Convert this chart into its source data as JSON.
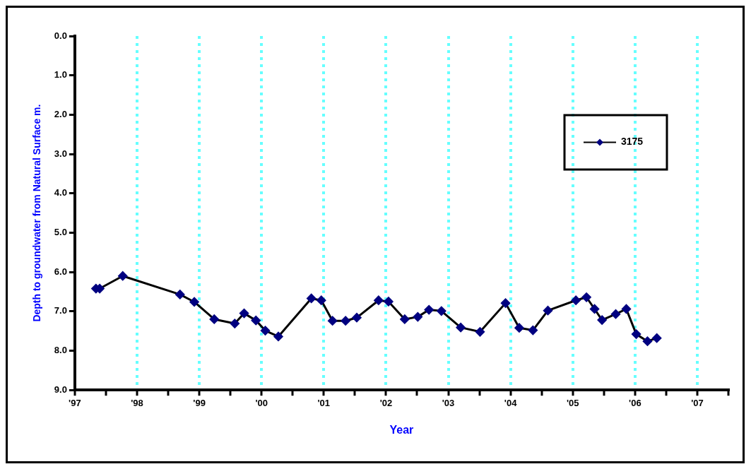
{
  "chart_data": {
    "type": "line",
    "xlabel": "Year",
    "ylabel": "Depth to groundwater from Natural Surface m.",
    "xlim": [
      1997,
      2007.5
    ],
    "xticks": [
      {
        "value": 1997,
        "label": "'97"
      },
      {
        "value": 1997.5,
        "label": null
      },
      {
        "value": 1998,
        "label": "'98"
      },
      {
        "value": 1998.5,
        "label": null
      },
      {
        "value": 1999,
        "label": "'99"
      },
      {
        "value": 1999.5,
        "label": null
      },
      {
        "value": 2000,
        "label": "'00"
      },
      {
        "value": 2000.5,
        "label": null
      },
      {
        "value": 2001,
        "label": "'01"
      },
      {
        "value": 2001.5,
        "label": null
      },
      {
        "value": 2002,
        "label": "'02"
      },
      {
        "value": 2002.5,
        "label": null
      },
      {
        "value": 2003,
        "label": "'03"
      },
      {
        "value": 2003.5,
        "label": null
      },
      {
        "value": 2004,
        "label": "'04"
      },
      {
        "value": 2004.5,
        "label": null
      },
      {
        "value": 2005,
        "label": "'05"
      },
      {
        "value": 2005.5,
        "label": null
      },
      {
        "value": 2006,
        "label": "'06"
      },
      {
        "value": 2006.5,
        "label": null
      },
      {
        "value": 2007,
        "label": "'07"
      },
      {
        "value": 2007.5,
        "label": null
      }
    ],
    "ylim": [
      9,
      0
    ],
    "yticks": [
      {
        "value": 0,
        "label": "0.0"
      },
      {
        "value": 1,
        "label": "1.0"
      },
      {
        "value": 2,
        "label": "2.0"
      },
      {
        "value": 3,
        "label": "3.0"
      },
      {
        "value": 4,
        "label": "4.0"
      },
      {
        "value": 5,
        "label": "5.0"
      },
      {
        "value": 6,
        "label": "6.0"
      },
      {
        "value": 7,
        "label": "7.0"
      },
      {
        "value": 8,
        "label": "8.0"
      },
      {
        "value": 9,
        "label": "9.0"
      }
    ],
    "grid": "x",
    "legend": "top right",
    "marker": "diamond",
    "line_style": "solid",
    "series": [
      {
        "name": "3175",
        "color": "#000080",
        "x": [
          1997.34,
          1997.4,
          1997.77,
          1998.69,
          1998.92,
          1999.24,
          1999.57,
          1999.72,
          1999.91,
          2000.06,
          2000.27,
          2000.8,
          2000.96,
          2001.14,
          2001.35,
          2001.53,
          2001.88,
          2002.04,
          2002.3,
          2002.51,
          2002.69,
          2002.89,
          2003.2,
          2003.51,
          2003.92,
          2004.14,
          2004.36,
          2004.6,
          2005.05,
          2005.22,
          2005.35,
          2005.47,
          2005.69,
          2005.86,
          2006.02,
          2006.2,
          2006.35
        ],
        "values": [
          6.42,
          6.42,
          6.1,
          6.57,
          6.76,
          7.2,
          7.31,
          7.05,
          7.23,
          7.49,
          7.64,
          6.67,
          6.72,
          7.24,
          7.24,
          7.16,
          6.72,
          6.75,
          7.2,
          7.14,
          6.96,
          6.99,
          7.41,
          7.52,
          6.79,
          7.42,
          7.48,
          6.98,
          6.72,
          6.64,
          6.94,
          7.22,
          7.07,
          6.94,
          7.58,
          7.76,
          7.68
        ]
      }
    ]
  }
}
